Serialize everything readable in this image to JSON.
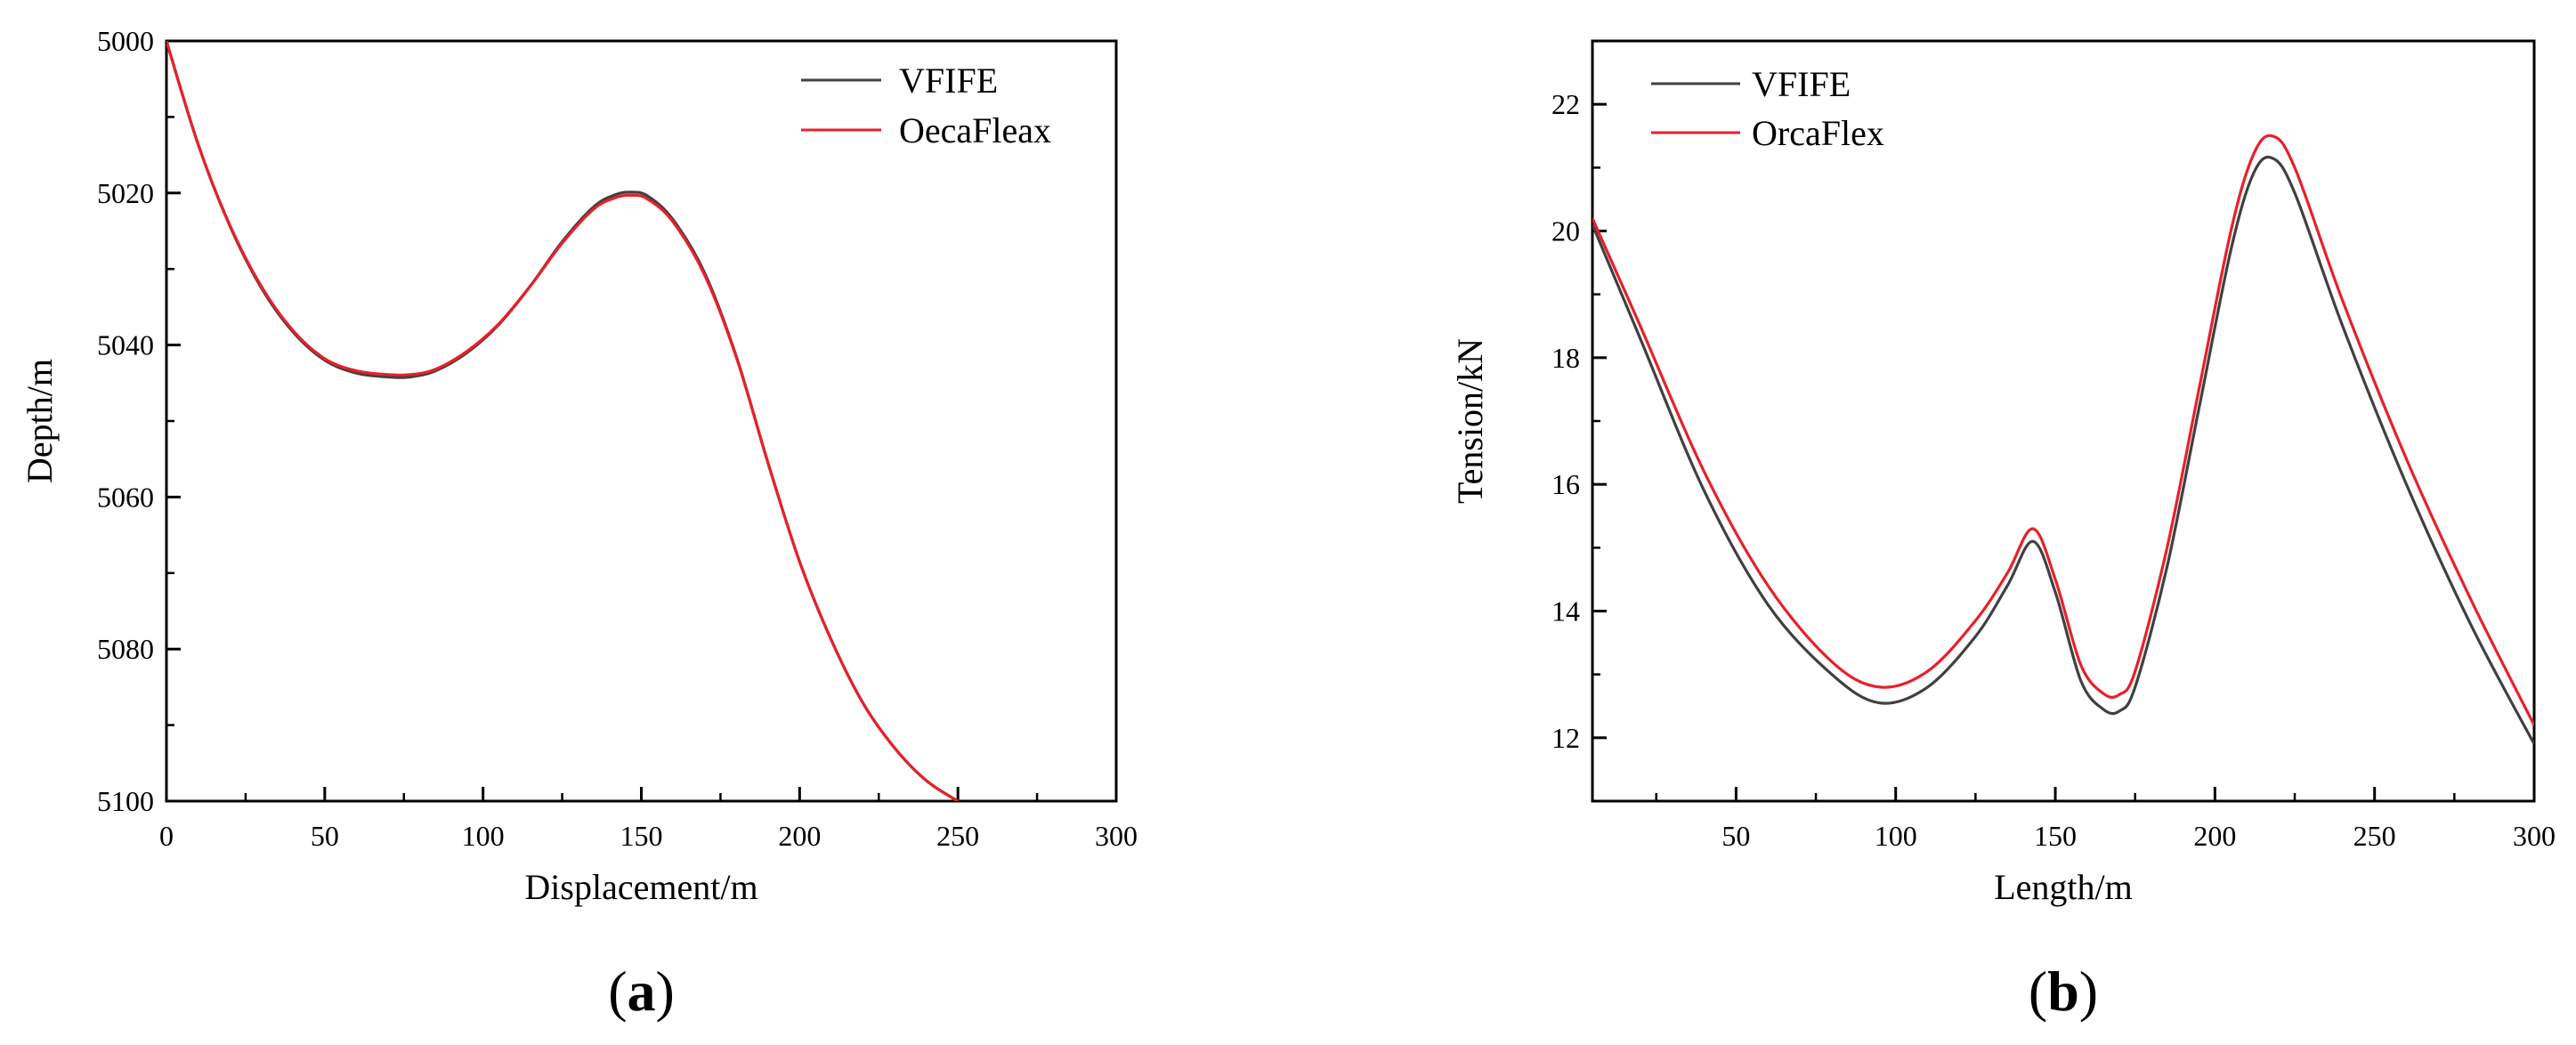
{
  "chart_data": [
    {
      "type": "line",
      "panel": "a",
      "panel_label": {
        "open": "(",
        "letter": "a",
        "close": ")"
      },
      "title": "",
      "xlabel": "Displacement/m",
      "ylabel": "Depth/m",
      "xlim": [
        0,
        300
      ],
      "ylim": [
        5000,
        5100
      ],
      "y_inverted": true,
      "xticks": [
        0,
        50,
        100,
        150,
        200,
        250,
        300
      ],
      "yticks": [
        5000,
        5020,
        5040,
        5060,
        5080,
        5100
      ],
      "legend_position": "top-right",
      "series": [
        {
          "name": "VFIFE",
          "color": "#404040",
          "x": [
            0,
            10,
            20,
            30,
            40,
            50,
            60,
            70,
            77,
            85,
            95,
            105,
            115,
            125,
            135,
            142,
            147,
            152,
            160,
            170,
            180,
            190,
            200,
            210,
            220,
            230,
            240,
            250
          ],
          "y": [
            5000,
            5013.6,
            5024.3,
            5032.5,
            5038.3,
            5042,
            5043.7,
            5044.2,
            5044.2,
            5043.4,
            5041,
            5037.3,
            5032.2,
            5026.4,
            5021.8,
            5020.2,
            5019.9,
            5020.4,
            5023.5,
            5030.5,
            5041.5,
            5055.5,
            5068.5,
            5078.8,
            5087.1,
            5093,
            5097.3,
            5100
          ]
        },
        {
          "name": "OecaFleax",
          "color": "#e8202a",
          "x": [
            0,
            10,
            20,
            30,
            40,
            50,
            60,
            70,
            77,
            85,
            95,
            105,
            115,
            125,
            135,
            142,
            147,
            152,
            160,
            170,
            180,
            190,
            200,
            210,
            220,
            230,
            240,
            250
          ],
          "y": [
            5000,
            5013.6,
            5024.2,
            5032.3,
            5038.1,
            5041.8,
            5043.4,
            5043.9,
            5043.9,
            5043.2,
            5040.8,
            5037.2,
            5032.2,
            5026.6,
            5022.1,
            5020.6,
            5020.3,
            5020.8,
            5023.8,
            5030.8,
            5041.6,
            5055.5,
            5068.5,
            5078.8,
            5087.1,
            5093,
            5097.3,
            5100
          ]
        }
      ]
    },
    {
      "type": "line",
      "panel": "b",
      "panel_label": {
        "open": "(",
        "letter": "b",
        "close": ")"
      },
      "title": "",
      "xlabel": "Length/m",
      "ylabel": "Tension/kN",
      "xlim": [
        5,
        300
      ],
      "ylim": [
        11,
        23
      ],
      "y_inverted": false,
      "xticks": [
        50,
        100,
        150,
        200,
        250,
        300
      ],
      "yticks": [
        12,
        14,
        16,
        18,
        20,
        22
      ],
      "legend_position": "top-left",
      "series": [
        {
          "name": "VFIFE",
          "color": "#404040",
          "x": [
            5,
            20,
            40,
            60,
            80,
            95,
            110,
            125,
            135,
            143,
            150,
            158,
            165,
            170,
            175,
            185,
            195,
            205,
            212,
            218,
            225,
            240,
            260,
            280,
            300
          ],
          "y": [
            20.1,
            18.3,
            15.9,
            14.1,
            13,
            12.55,
            12.8,
            13.6,
            14.4,
            15.1,
            14.3,
            12.9,
            12.45,
            12.42,
            12.8,
            14.7,
            17.2,
            19.7,
            20.9,
            21.15,
            20.6,
            18.5,
            16,
            13.8,
            11.9
          ]
        },
        {
          "name": "OrcaFlex",
          "color": "#e8202a",
          "x": [
            5,
            20,
            40,
            60,
            80,
            95,
            110,
            125,
            135,
            143,
            150,
            158,
            165,
            170,
            175,
            185,
            195,
            205,
            212,
            218,
            225,
            240,
            260,
            280,
            300
          ],
          "y": [
            20.2,
            18.5,
            16.2,
            14.4,
            13.2,
            12.8,
            13.05,
            13.85,
            14.6,
            15.3,
            14.5,
            13.15,
            12.7,
            12.68,
            13.05,
            15,
            17.5,
            20,
            21.2,
            21.5,
            21,
            18.9,
            16.4,
            14.2,
            12.2
          ]
        }
      ]
    }
  ]
}
